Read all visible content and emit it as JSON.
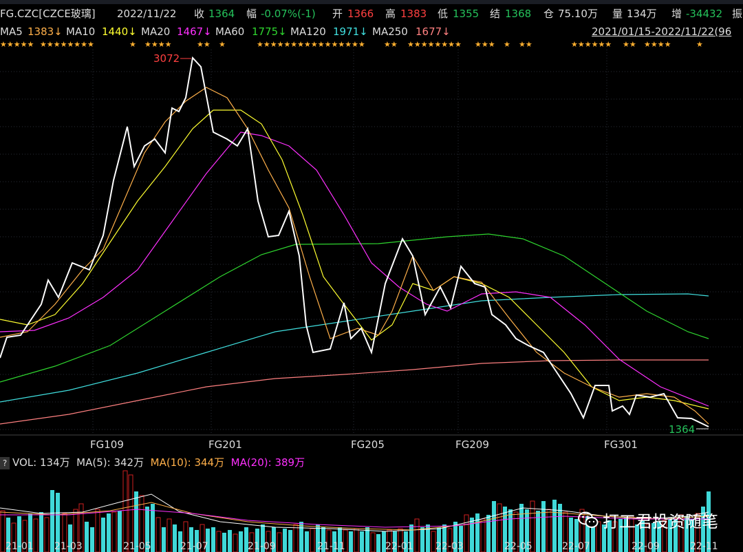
{
  "info": {
    "symbol": "FG.CZC[CZCE玻璃]",
    "date": "2022/11/22",
    "close_label": "收",
    "close": "1364",
    "change_label": "幅",
    "change": "-0.07%(-1)",
    "open_label": "开",
    "open": "1366",
    "high_label": "高",
    "high": "1383",
    "low_label": "低",
    "low": "1355",
    "settle_label": "结",
    "settle": "1368",
    "oi_label": "仓",
    "oi": "75.10万",
    "vol_label": "量",
    "vol": "134万",
    "inc_label": "增",
    "inc": "-34432",
    "more_label": "振"
  },
  "ma": {
    "ma5_label": "MA5",
    "ma5": "1383↓",
    "ma10_label": "MA10",
    "ma10": "1440↓",
    "ma20_label": "MA20",
    "ma20": "1467↓",
    "ma60_label": "MA60",
    "ma60": "1775↓",
    "ma120_label": "MA120",
    "ma120": "1971↓",
    "ma250_label": "MA250",
    "ma250": "1677↓",
    "range": "2021/01/15-2022/11/22(96"
  },
  "chart": {
    "high_marker": "3072",
    "last_marker": "1364",
    "contract_labels": [
      "FG109",
      "FG201",
      "FG205",
      "FG209",
      "FG301"
    ]
  },
  "volume": {
    "q": "?",
    "vol_label": "VOL: 134万",
    "ma5_label": "MA(5): 342万",
    "ma10_label": "MA(10): 344万",
    "ma20_label": "MA(20): 389万",
    "dates": [
      "21-01",
      "21-03",
      "21-05",
      "21-07",
      "21-09",
      "21-11",
      "22-01",
      "22-03",
      "22-05",
      "22-07",
      "22-09",
      "22-11"
    ]
  },
  "watermark": "打工君投资随笔",
  "colors": {
    "ma5": "#ffffff",
    "ma10": "#ffb04a",
    "ma20": "#ffff30",
    "ma60": "#ff30ff",
    "ma120": "#2fd62f",
    "ma250": "#40e0e0",
    "long": "#ff8080"
  }
}
